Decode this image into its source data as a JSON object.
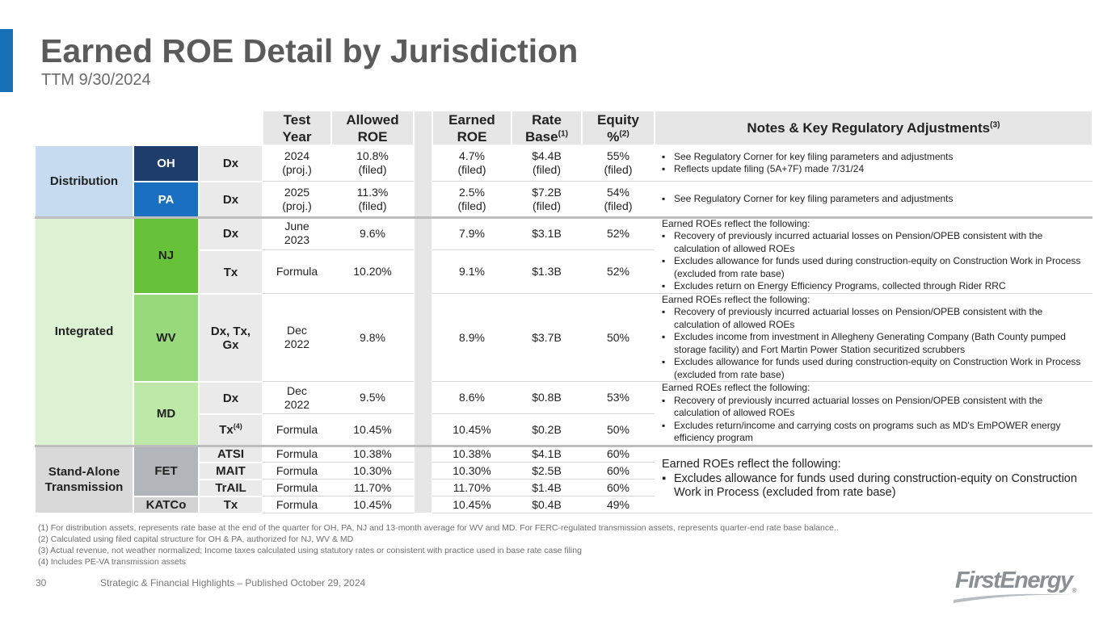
{
  "header": {
    "title": "Earned ROE Detail by Jurisdiction",
    "subtitle": "TTM 9/30/2024"
  },
  "table": {
    "columns": [
      {
        "text": "Test Year"
      },
      {
        "text": "Allowed ROE"
      },
      {
        "text": "Earned ROE"
      },
      {
        "text": "Rate Base",
        "sup": "(1)"
      },
      {
        "text": "Equity %",
        "sup": "(2)"
      },
      {
        "text": "Notes & Key Regulatory Adjustments",
        "sup": "(3)"
      }
    ],
    "segments": [
      "Distribution",
      "Integrated",
      "Stand-Alone Transmission"
    ],
    "jurisdictions": [
      "OH",
      "PA",
      "NJ",
      "WV",
      "MD",
      "FET",
      "KATCo"
    ],
    "rows": [
      {
        "type": "Dx",
        "test_year": "2024 (proj.)",
        "allowed_roe": "10.8% (filed)",
        "earned_roe": "4.7% (filed)",
        "rate_base": "$4.4B (filed)",
        "equity": "55% (filed)"
      },
      {
        "type": "Dx",
        "test_year": "2025 (proj.)",
        "allowed_roe": "11.3% (filed)",
        "earned_roe": "2.5% (filed)",
        "rate_base": "$7.2B (filed)",
        "equity": "54% (filed)"
      },
      {
        "type": "Dx",
        "test_year": "June 2023",
        "allowed_roe": "9.6%",
        "earned_roe": "7.9%",
        "rate_base": "$3.1B",
        "equity": "52%"
      },
      {
        "type": "Tx",
        "test_year": "Formula",
        "allowed_roe": "10.20%",
        "earned_roe": "9.1%",
        "rate_base": "$1.3B",
        "equity": "52%"
      },
      {
        "type": "Dx, Tx, Gx",
        "test_year": "Dec 2022",
        "allowed_roe": "9.8%",
        "earned_roe": "8.9%",
        "rate_base": "$3.7B",
        "equity": "50%"
      },
      {
        "type": "Dx",
        "test_year": "Dec 2022",
        "allowed_roe": "9.5%",
        "earned_roe": "8.6%",
        "rate_base": "$0.8B",
        "equity": "53%"
      },
      {
        "type": "Tx",
        "type_sup": "(4)",
        "test_year": "Formula",
        "allowed_roe": "10.45%",
        "earned_roe": "10.45%",
        "rate_base": "$0.2B",
        "equity": "50%"
      },
      {
        "type": "ATSI",
        "test_year": "Formula",
        "allowed_roe": "10.38%",
        "earned_roe": "10.38%",
        "rate_base": "$4.1B",
        "equity": "60%"
      },
      {
        "type": "MAIT",
        "test_year": "Formula",
        "allowed_roe": "10.30%",
        "earned_roe": "10.30%",
        "rate_base": "$2.5B",
        "equity": "60%"
      },
      {
        "type": "TrAIL",
        "test_year": "Formula",
        "allowed_roe": "11.70%",
        "earned_roe": "11.70%",
        "rate_base": "$1.4B",
        "equity": "60%"
      },
      {
        "type": "Tx",
        "test_year": "Formula",
        "allowed_roe": "10.45%",
        "earned_roe": "10.45%",
        "rate_base": "$0.4B",
        "equity": "49%"
      }
    ],
    "notes": [
      {
        "bullets": [
          "See Regulatory Corner for key filing parameters and adjustments",
          "Reflects update filing (5A+7F) made 7/31/24"
        ]
      },
      {
        "bullets": [
          "See Regulatory Corner for key filing parameters and adjustments"
        ]
      },
      {
        "intro": "Earned ROEs reflect the following:",
        "bullets": [
          "Recovery of previously incurred actuarial losses on Pension/OPEB consistent with the calculation of allowed ROEs",
          "Excludes allowance for funds used during construction-equity on Construction Work in Process (excluded from rate base)",
          "Excludes return on Energy Efficiency Programs, collected through Rider RRC"
        ]
      },
      {
        "intro": "Earned ROEs reflect the following:",
        "bullets": [
          "Recovery of previously incurred actuarial losses on Pension/OPEB consistent with the calculation of allowed ROEs",
          "Excludes income from investment in Allegheny Generating Company (Bath County pumped storage facility) and Fort Martin Power Station securitized scrubbers",
          "Excludes allowance for funds used during construction-equity on Construction Work in Process (excluded from rate base)"
        ]
      },
      {
        "intro": "Earned ROEs reflect the following:",
        "bullets": [
          "Recovery of previously incurred actuarial losses on Pension/OPEB consistent with the calculation of allowed ROEs",
          "Excludes return/income and carrying costs on programs such as MD's EmPOWER energy efficiency program"
        ]
      },
      {
        "intro": "Earned ROEs reflect the following:",
        "bullets": [
          "Excludes allowance for funds used during construction-equity on Construction Work in Process (excluded from rate base)"
        ]
      }
    ]
  },
  "footnotes": [
    "(1)  For distribution assets, represents rate base at the end of the quarter for OH, PA, NJ and 13-month average for WV and MD.  For FERC-regulated transmission assets, represents quarter-end rate base balance..",
    "(2)  Calculated using filed capital structure for OH & PA, authorized for NJ, WV & MD",
    "(3)  Actual revenue, not weather normalized; Income taxes calculated using statutory rates or consistent with practice used in base rate case filing",
    "(4)  Includes PE-VA transmission assets"
  ],
  "footer": {
    "page": "30",
    "text": "Strategic & Financial Highlights – Published October 29, 2024",
    "logo": "FirstEnergy",
    "logo_mark": "®"
  }
}
